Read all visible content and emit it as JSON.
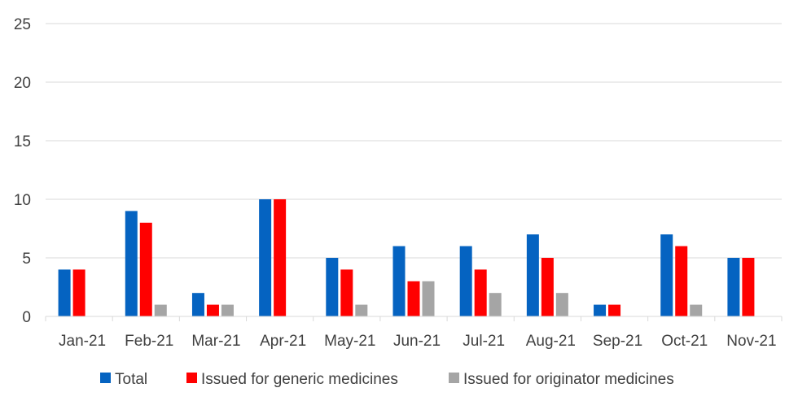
{
  "chart_data": {
    "type": "bar",
    "categories": [
      "Jan-21",
      "Feb-21",
      "Mar-21",
      "Apr-21",
      "May-21",
      "Jun-21",
      "Jul-21",
      "Aug-21",
      "Sep-21",
      "Oct-21",
      "Nov-21"
    ],
    "series": [
      {
        "name": "Total",
        "color": "#0563C1",
        "values": [
          4,
          9,
          2,
          10,
          5,
          6,
          6,
          7,
          1,
          7,
          5
        ]
      },
      {
        "name": "Issued for generic medicines",
        "color": "#FF0000",
        "values": [
          4,
          8,
          1,
          10,
          4,
          3,
          4,
          5,
          1,
          6,
          5
        ]
      },
      {
        "name": "Issued for originator medicines",
        "color": "#A5A5A5",
        "values": [
          0,
          1,
          1,
          0,
          1,
          3,
          2,
          2,
          0,
          1,
          0
        ]
      }
    ],
    "yticks": [
      "0",
      "5",
      "10",
      "15",
      "20",
      "25"
    ],
    "ylim": [
      0,
      25
    ],
    "grid": true,
    "legend_position": "bottom"
  }
}
